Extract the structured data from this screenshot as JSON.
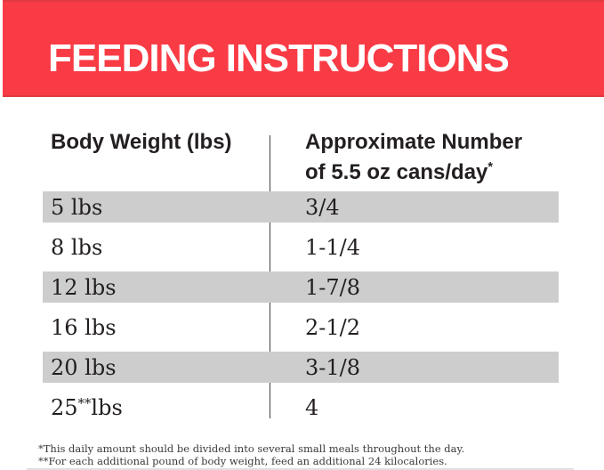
{
  "header": {
    "title": "FEEDING INSTRUCTIONS"
  },
  "table": {
    "col1_header": "Body Weight (lbs)",
    "col2_header_line1": "Approximate Number",
    "col2_header_line2": "of 5.5 oz cans/day",
    "col2_header_sup": "*",
    "rows": [
      {
        "weight": "5 lbs",
        "weight_sup": "",
        "weight_after": "",
        "cans": "3/4"
      },
      {
        "weight": "8 lbs",
        "weight_sup": "",
        "weight_after": "",
        "cans": "1-1/4"
      },
      {
        "weight": "12 lbs",
        "weight_sup": "",
        "weight_after": "",
        "cans": "1-7/8"
      },
      {
        "weight": "16 lbs",
        "weight_sup": "",
        "weight_after": "",
        "cans": "2-1/2"
      },
      {
        "weight": "20 lbs",
        "weight_sup": "",
        "weight_after": "",
        "cans": "3-1/8"
      },
      {
        "weight": "25",
        "weight_sup": "**",
        "weight_after": " lbs",
        "cans": "4"
      }
    ]
  },
  "footnotes": [
    "*This daily amount should be divided into several small meals throughout the day.",
    "**For each additional pound of body weight, feed an additional 24 kilocalories."
  ],
  "colors": {
    "accent-red": "#f93b45",
    "accent-red-dark": "#e13941",
    "row-gray": "#cdcdcd",
    "text-dark": "#231f20"
  }
}
